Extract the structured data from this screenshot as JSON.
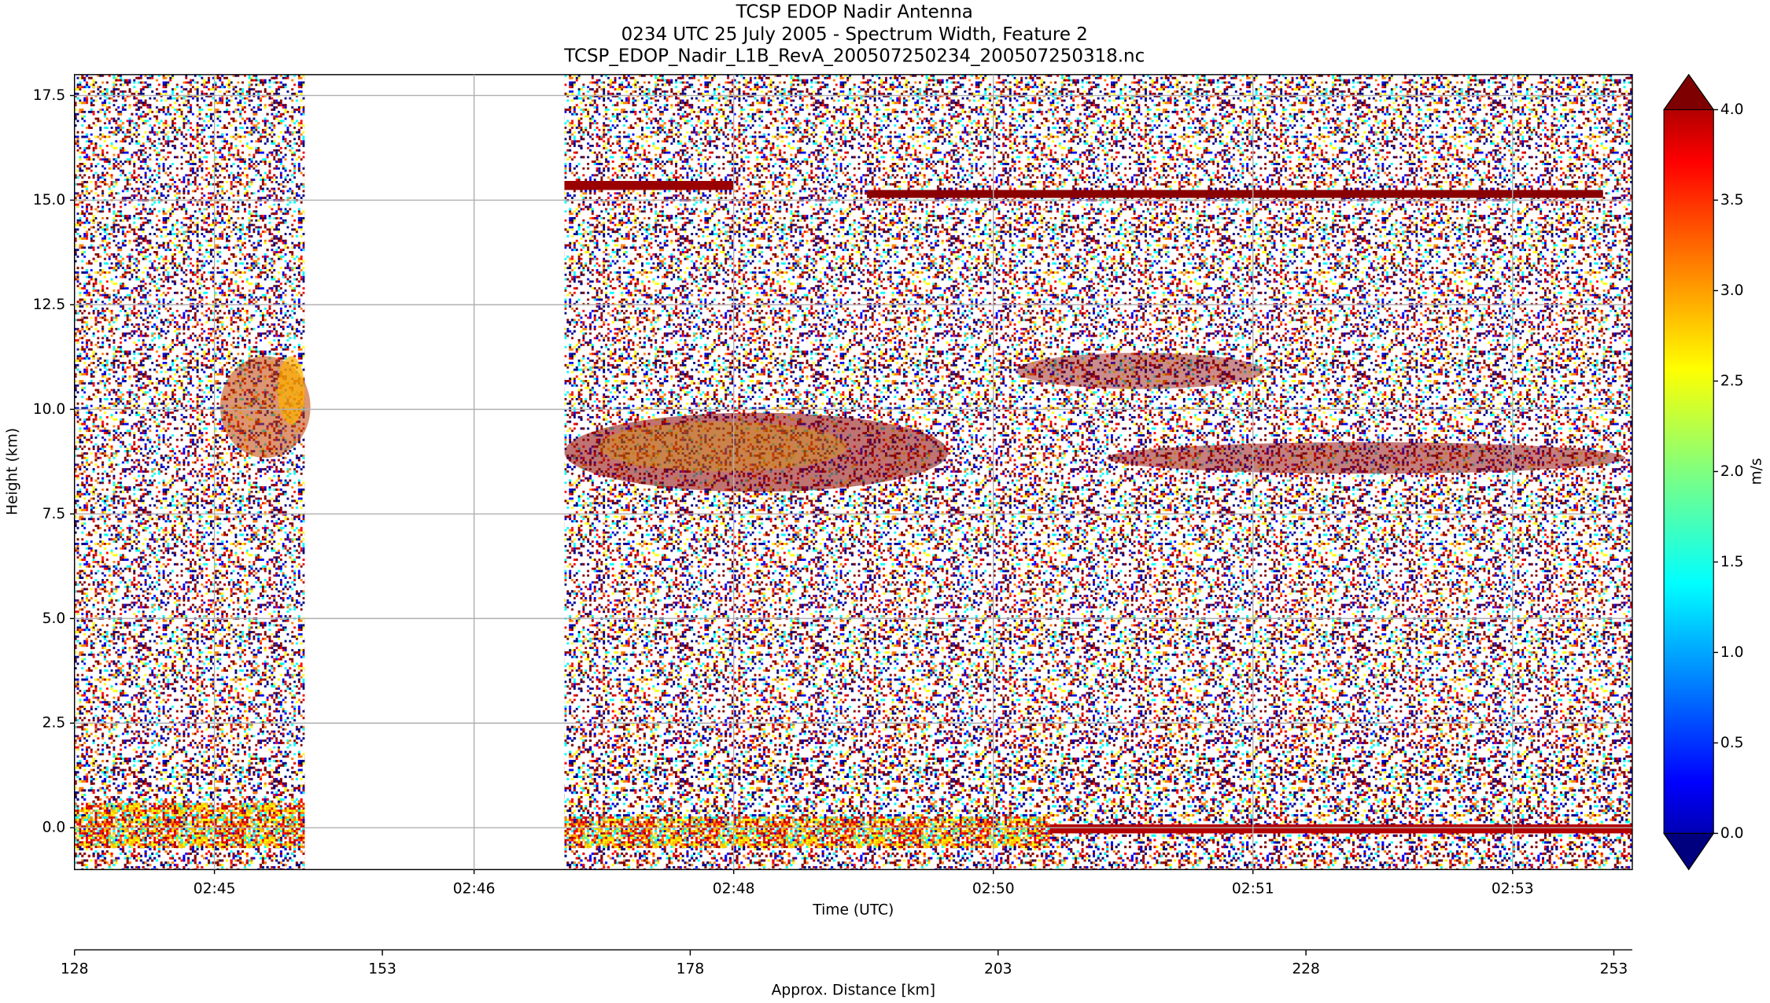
{
  "chart_data": {
    "type": "heatmap",
    "title": "TCSP EDOP Nadir Antenna",
    "subtitle": "0234 UTC 25 July 2005 - Spectrum Width, Feature 2",
    "source_file": "TCSP_EDOP_Nadir_L1B_RevA_200507250234_200507250318.nc",
    "xlabel": "Time (UTC)",
    "ylabel": "Height (km)",
    "x2label": "Approx. Distance [km]",
    "colorbar_label": "m/s",
    "colormap": "jet",
    "grid": true,
    "xlim": [
      -0.539,
      5.461
    ],
    "xticks": [
      {
        "value": 0,
        "label": "02:45"
      },
      {
        "value": 1,
        "label": "02:46"
      },
      {
        "value": 2,
        "label": "02:48"
      },
      {
        "value": 3,
        "label": "02:50"
      },
      {
        "value": 4,
        "label": "02:51"
      },
      {
        "value": 5,
        "label": "02:53"
      }
    ],
    "x2lim": [
      128,
      254.5
    ],
    "x2ticks": [
      128,
      153,
      178,
      203,
      228,
      253
    ],
    "ylim": [
      -1,
      18
    ],
    "yticks": [
      {
        "value": 0,
        "label": "0.0"
      },
      {
        "value": 2.5,
        "label": "2.5"
      },
      {
        "value": 5,
        "label": "5.0"
      },
      {
        "value": 7.5,
        "label": "7.5"
      },
      {
        "value": 10,
        "label": "10.0"
      },
      {
        "value": 12.5,
        "label": "12.5"
      },
      {
        "value": 15,
        "label": "15.0"
      },
      {
        "value": 17.5,
        "label": "17.5"
      }
    ],
    "clim": [
      0,
      4
    ],
    "cticks": [
      {
        "value": 0,
        "label": "0.0"
      },
      {
        "value": 0.5,
        "label": "0.5"
      },
      {
        "value": 1,
        "label": "1.0"
      },
      {
        "value": 1.5,
        "label": "1.5"
      },
      {
        "value": 2,
        "label": "2.0"
      },
      {
        "value": 2.5,
        "label": "2.5"
      },
      {
        "value": 3,
        "label": "3.0"
      },
      {
        "value": 3.5,
        "label": "3.5"
      },
      {
        "value": 4,
        "label": "4.0"
      }
    ]
  }
}
